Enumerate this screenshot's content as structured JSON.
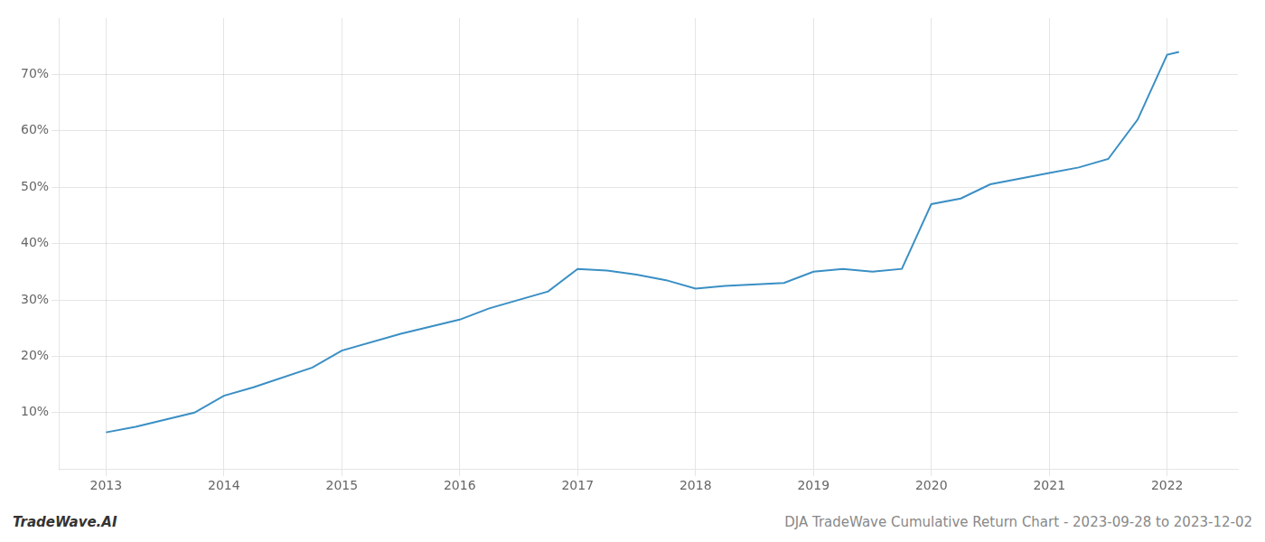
{
  "chart_data": {
    "type": "line",
    "x": [
      2013.0,
      2013.25,
      2013.75,
      2014.0,
      2014.25,
      2014.75,
      2015.0,
      2015.5,
      2016.0,
      2016.25,
      2016.75,
      2017.0,
      2017.25,
      2017.5,
      2017.75,
      2018.0,
      2018.25,
      2018.75,
      2019.0,
      2019.25,
      2019.5,
      2019.75,
      2020.0,
      2020.25,
      2020.5,
      2020.75,
      2021.0,
      2021.25,
      2021.5,
      2021.75,
      2022.0,
      2022.1
    ],
    "values": [
      6.5,
      7.5,
      10.0,
      13.0,
      14.5,
      18.0,
      21.0,
      24.0,
      26.5,
      28.5,
      31.5,
      35.5,
      35.2,
      34.5,
      33.5,
      32.0,
      32.5,
      33.0,
      35.0,
      35.5,
      35.0,
      35.5,
      47.0,
      48.0,
      50.5,
      51.5,
      52.5,
      53.5,
      55.0,
      62.0,
      73.5,
      74.0
    ],
    "color": "#3a8fc4",
    "xlim": [
      2012.6,
      2022.6
    ],
    "xticks": [
      2013,
      2014,
      2015,
      2016,
      2017,
      2018,
      2019,
      2020,
      2021,
      2022
    ],
    "ylim": [
      0,
      80
    ],
    "yticks": [
      {
        "value": 10,
        "label": "10%"
      },
      {
        "value": 20,
        "label": "20%"
      },
      {
        "value": 30,
        "label": "30%"
      },
      {
        "value": 40,
        "label": "40%"
      },
      {
        "value": 50,
        "label": "50%"
      },
      {
        "value": 60,
        "label": "60%"
      },
      {
        "value": 70,
        "label": "70%"
      }
    ],
    "grid": true,
    "annotations": [
      "TradeWave.AI",
      "DJA TradeWave Cumulative Return Chart - 2023-09-28 to 2023-12-02"
    ]
  }
}
